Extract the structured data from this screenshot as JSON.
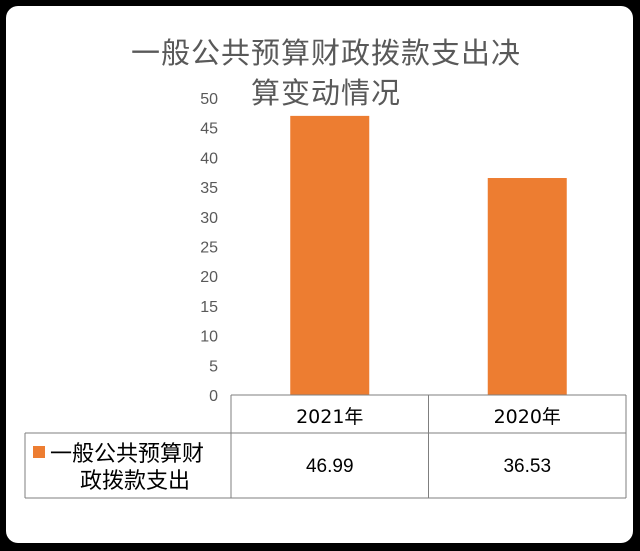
{
  "chart_data": {
    "type": "bar",
    "title_lines": [
      "一般公共预算财政拨款支出决",
      "算变动情况"
    ],
    "categories": [
      "2021年",
      "2020年"
    ],
    "series": [
      {
        "name_lines": [
          "一般公共预算财",
          "政拨款支出"
        ],
        "values": [
          46.99,
          36.53
        ],
        "color": "#ED7D31"
      }
    ],
    "ylim": [
      0,
      50
    ],
    "yticks": [
      "0",
      "5",
      "10",
      "15",
      "20",
      "25",
      "30",
      "35",
      "40",
      "45",
      "50"
    ],
    "value_labels": [
      "46.99",
      "36.53"
    ],
    "data_table": true,
    "grid": false,
    "legend_placement": "data-table-left"
  }
}
